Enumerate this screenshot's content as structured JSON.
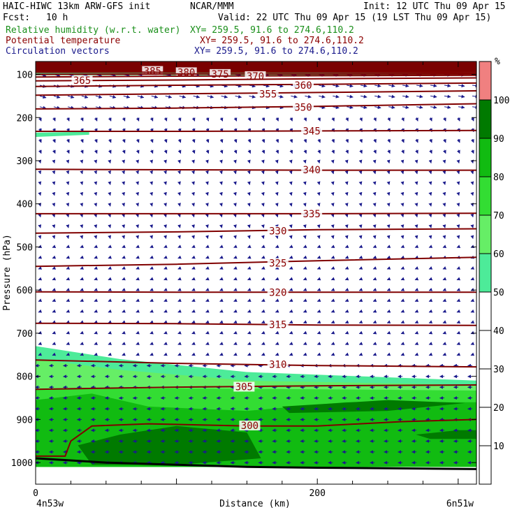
{
  "header": {
    "model": "HAIC-HIWC 13km ARW-GFS init",
    "org": "NCAR/MMM",
    "init": "Init: 12 UTC Thu 09 Apr 15",
    "fcst_label": "Fcst:",
    "fcst_value": "10 h",
    "valid": "Valid: 22 UTC Thu 09 Apr 15 (19 LST Thu 09 Apr 15)",
    "fields": [
      {
        "name": "Relative humidity (w.r.t. water)",
        "xy": "XY= 259.5, 91.6 to 274.6,110.2",
        "color": "#1a8f1a"
      },
      {
        "name": "Potential temperature",
        "xy": "XY= 259.5, 91.6 to 274.6,110.2",
        "color": "#8b0000"
      },
      {
        "name": "Circulation vectors",
        "xy": "XY= 259.5, 91.6 to 274.6,110.2",
        "color": "#1a1a8c"
      }
    ]
  },
  "colorbar": {
    "unit": "%",
    "bands": [
      {
        "from": 0,
        "to": 50,
        "color": "#ffffff"
      },
      {
        "from": 50,
        "to": 60,
        "color": "#4deb99"
      },
      {
        "from": 60,
        "to": 70,
        "color": "#66ee66"
      },
      {
        "from": 70,
        "to": 80,
        "color": "#33dd33"
      },
      {
        "from": 80,
        "to": 90,
        "color": "#11bb11"
      },
      {
        "from": 90,
        "to": 100,
        "color": "#007a00"
      },
      {
        "from": 100,
        "to": 110,
        "color": "#f08080"
      }
    ],
    "ticks": [
      "10",
      "20",
      "30",
      "40",
      "50",
      "60",
      "70",
      "80",
      "90",
      "100"
    ]
  },
  "chart_data": {
    "type": "cross-section",
    "ylabel": "Pressure (hPa)",
    "xlabel": "Distance (km)",
    "x_tick_labels": [
      {
        "value": 0,
        "label": "0"
      },
      {
        "value": 200,
        "label": "200"
      }
    ],
    "x_end_labels": {
      "left": "4n53w",
      "right": "6n51w"
    },
    "xlim": [
      0,
      313
    ],
    "ylim": [
      1050,
      70
    ],
    "y_ticks": [
      100,
      200,
      300,
      400,
      500,
      600,
      700,
      800,
      900,
      1000
    ],
    "theta_contours": [
      {
        "label": "385",
        "points": [
          [
            0,
            92
          ],
          [
            100,
            92
          ],
          [
            200,
            93
          ],
          [
            313,
            93
          ]
        ],
        "label_at": [
          83,
          92
        ]
      },
      {
        "label": "380",
        "points": [
          [
            0,
            95
          ],
          [
            100,
            95
          ],
          [
            200,
            95
          ],
          [
            313,
            96
          ]
        ],
        "label_at": [
          107,
          95
        ]
      },
      {
        "label": "375",
        "points": [
          [
            0,
            100
          ],
          [
            100,
            99
          ],
          [
            200,
            99
          ],
          [
            313,
            99
          ]
        ],
        "label_at": [
          131,
          99
        ]
      },
      {
        "label": "370",
        "points": [
          [
            0,
            106
          ],
          [
            100,
            104
          ],
          [
            200,
            103
          ],
          [
            313,
            102
          ]
        ],
        "label_at": [
          156,
          104
        ]
      },
      {
        "label": "365",
        "points": [
          [
            0,
            115
          ],
          [
            100,
            113
          ],
          [
            200,
            110
          ],
          [
            313,
            108
          ]
        ],
        "label_at": [
          33,
          114
        ]
      },
      {
        "label": "360",
        "points": [
          [
            0,
            128
          ],
          [
            100,
            125
          ],
          [
            200,
            123
          ],
          [
            313,
            120
          ]
        ],
        "label_at": [
          190,
          125
        ]
      },
      {
        "label": "355",
        "points": [
          [
            0,
            148
          ],
          [
            100,
            145
          ],
          [
            200,
            142
          ],
          [
            313,
            138
          ]
        ],
        "label_at": [
          165,
          145
        ]
      },
      {
        "label": "350",
        "points": [
          [
            0,
            180
          ],
          [
            100,
            178
          ],
          [
            200,
            174
          ],
          [
            313,
            168
          ]
        ],
        "label_at": [
          190,
          176
        ]
      },
      {
        "label": "345",
        "points": [
          [
            0,
            232
          ],
          [
            100,
            232
          ],
          [
            200,
            231
          ],
          [
            313,
            230
          ]
        ],
        "label_at": [
          196,
          231
        ]
      },
      {
        "label": "340",
        "points": [
          [
            0,
            320
          ],
          [
            100,
            321
          ],
          [
            200,
            322
          ],
          [
            313,
            322
          ]
        ],
        "label_at": [
          196,
          321
        ]
      },
      {
        "label": "335",
        "points": [
          [
            0,
            423
          ],
          [
            100,
            423
          ],
          [
            200,
            423
          ],
          [
            313,
            422
          ]
        ],
        "label_at": [
          196,
          423
        ]
      },
      {
        "label": "330",
        "points": [
          [
            0,
            468
          ],
          [
            100,
            465
          ],
          [
            200,
            460
          ],
          [
            313,
            458
          ]
        ],
        "label_at": [
          172,
          463
        ]
      },
      {
        "label": "325",
        "points": [
          [
            0,
            545
          ],
          [
            100,
            540
          ],
          [
            200,
            532
          ],
          [
            313,
            524
          ]
        ],
        "label_at": [
          172,
          537
        ]
      },
      {
        "label": "320",
        "points": [
          [
            0,
            604
          ],
          [
            100,
            605
          ],
          [
            200,
            605
          ],
          [
            313,
            605
          ]
        ],
        "label_at": [
          172,
          605
        ]
      },
      {
        "label": "315",
        "points": [
          [
            0,
            677
          ],
          [
            100,
            678
          ],
          [
            200,
            681
          ],
          [
            313,
            682
          ]
        ],
        "label_at": [
          172,
          680
        ]
      },
      {
        "label": "310",
        "points": [
          [
            0,
            762
          ],
          [
            100,
            770
          ],
          [
            200,
            775
          ],
          [
            313,
            778
          ]
        ],
        "label_at": [
          172,
          772
        ]
      },
      {
        "label": "305",
        "points": [
          [
            0,
            830
          ],
          [
            100,
            825
          ],
          [
            200,
            822
          ],
          [
            313,
            820
          ]
        ],
        "label_at": [
          148,
          824
        ]
      },
      {
        "label": "300",
        "points": [
          [
            0,
            985
          ],
          [
            21,
            985
          ],
          [
            25,
            950
          ],
          [
            40,
            915
          ],
          [
            80,
            910
          ],
          [
            150,
            915
          ],
          [
            200,
            915
          ],
          [
            260,
            905
          ],
          [
            313,
            900
          ]
        ],
        "label_at": [
          152,
          914
        ]
      }
    ],
    "rh_regions": [
      {
        "class": "50-60",
        "points": [
          [
            0,
            730
          ],
          [
            60,
            760
          ],
          [
            150,
            790
          ],
          [
            313,
            810
          ],
          [
            313,
            1010
          ],
          [
            0,
            1010
          ]
        ]
      },
      {
        "class": "60-70",
        "points": [
          [
            0,
            760
          ],
          [
            60,
            785
          ],
          [
            150,
            810
          ],
          [
            313,
            820
          ],
          [
            313,
            1010
          ],
          [
            0,
            1010
          ]
        ]
      },
      {
        "class": "70-80",
        "points": [
          [
            0,
            830
          ],
          [
            100,
            828
          ],
          [
            200,
            830
          ],
          [
            313,
            833
          ],
          [
            313,
            1010
          ],
          [
            0,
            1010
          ]
        ]
      },
      {
        "class": "80-90",
        "points": [
          [
            0,
            855
          ],
          [
            40,
            840
          ],
          [
            80,
            870
          ],
          [
            150,
            880
          ],
          [
            220,
            860
          ],
          [
            313,
            860
          ],
          [
            313,
            1010
          ],
          [
            0,
            1010
          ]
        ]
      },
      {
        "class": "90-100",
        "points": [
          [
            30,
            960
          ],
          [
            60,
            935
          ],
          [
            100,
            915
          ],
          [
            150,
            930
          ],
          [
            160,
            990
          ],
          [
            100,
            1005
          ],
          [
            40,
            1005
          ]
        ]
      },
      {
        "class": "90-100",
        "points": [
          [
            175,
            870
          ],
          [
            250,
            855
          ],
          [
            305,
            862
          ],
          [
            250,
            880
          ],
          [
            180,
            885
          ]
        ]
      },
      {
        "class": "90-100",
        "points": [
          [
            270,
            935
          ],
          [
            300,
            925
          ],
          [
            313,
            925
          ],
          [
            313,
            945
          ],
          [
            280,
            945
          ]
        ]
      },
      {
        "class": "50-60",
        "points": [
          [
            0,
            235
          ],
          [
            38,
            233
          ],
          [
            38,
            240
          ],
          [
            0,
            245
          ]
        ]
      }
    ],
    "top_band": {
      "class": "100-110",
      "from_p": 70,
      "to_p": 92
    },
    "ground": [
      [
        0,
        990
      ],
      [
        50,
        1000
      ],
      [
        100,
        1005
      ],
      [
        150,
        1010
      ],
      [
        200,
        1012
      ],
      [
        250,
        1013
      ],
      [
        313,
        1015
      ]
    ]
  }
}
